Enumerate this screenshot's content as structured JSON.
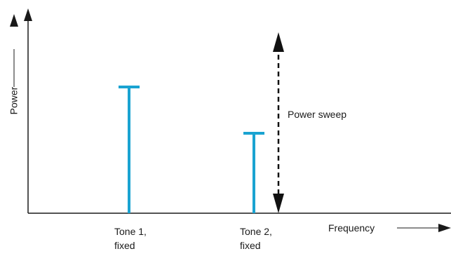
{
  "axes": {
    "x_label": "Frequency",
    "y_label": "Power"
  },
  "tones": [
    {
      "name": "Tone 1,",
      "sub": "fixed",
      "level": 0.6
    },
    {
      "name": "Tone 2,",
      "sub": "fixed",
      "level": 0.38
    }
  ],
  "sweep": {
    "label": "Power sweep"
  },
  "colors": {
    "tone": "#1aa3d1",
    "axis": "#1a1a1a",
    "sweep": "#111111"
  }
}
